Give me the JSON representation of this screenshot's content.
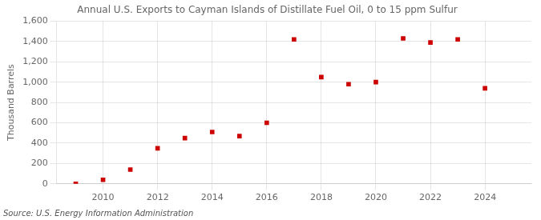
{
  "chart_data": {
    "type": "scatter",
    "title": "Annual U.S. Exports to Cayman Islands of Distillate Fuel Oil, 0 to 15 ppm Sulfur",
    "ylabel": "Thousand Barrels",
    "source": "Source: U.S. Energy Information Administration",
    "x": [
      2009,
      2010,
      2011,
      2012,
      2013,
      2014,
      2015,
      2016,
      2017,
      2018,
      2019,
      2020,
      2021,
      2022,
      2023,
      2024
    ],
    "values": [
      0,
      40,
      140,
      350,
      450,
      510,
      470,
      600,
      1420,
      1050,
      980,
      1000,
      1430,
      1390,
      1420,
      940
    ],
    "color": "#cc0000",
    "marker": "square",
    "xlim": [
      2008.3,
      2025.7
    ],
    "xticks": [
      2010,
      2012,
      2014,
      2016,
      2018,
      2020,
      2022,
      2024
    ],
    "ylim": [
      0,
      1600
    ],
    "yticks": [
      0,
      200,
      400,
      600,
      800,
      {
        "value": 1000,
        "label": "1,000"
      },
      {
        "value": 1200,
        "label": "1,200"
      },
      {
        "value": 1400,
        "label": "1,400"
      },
      {
        "value": 1600,
        "label": "1,600"
      }
    ],
    "grid": true
  }
}
